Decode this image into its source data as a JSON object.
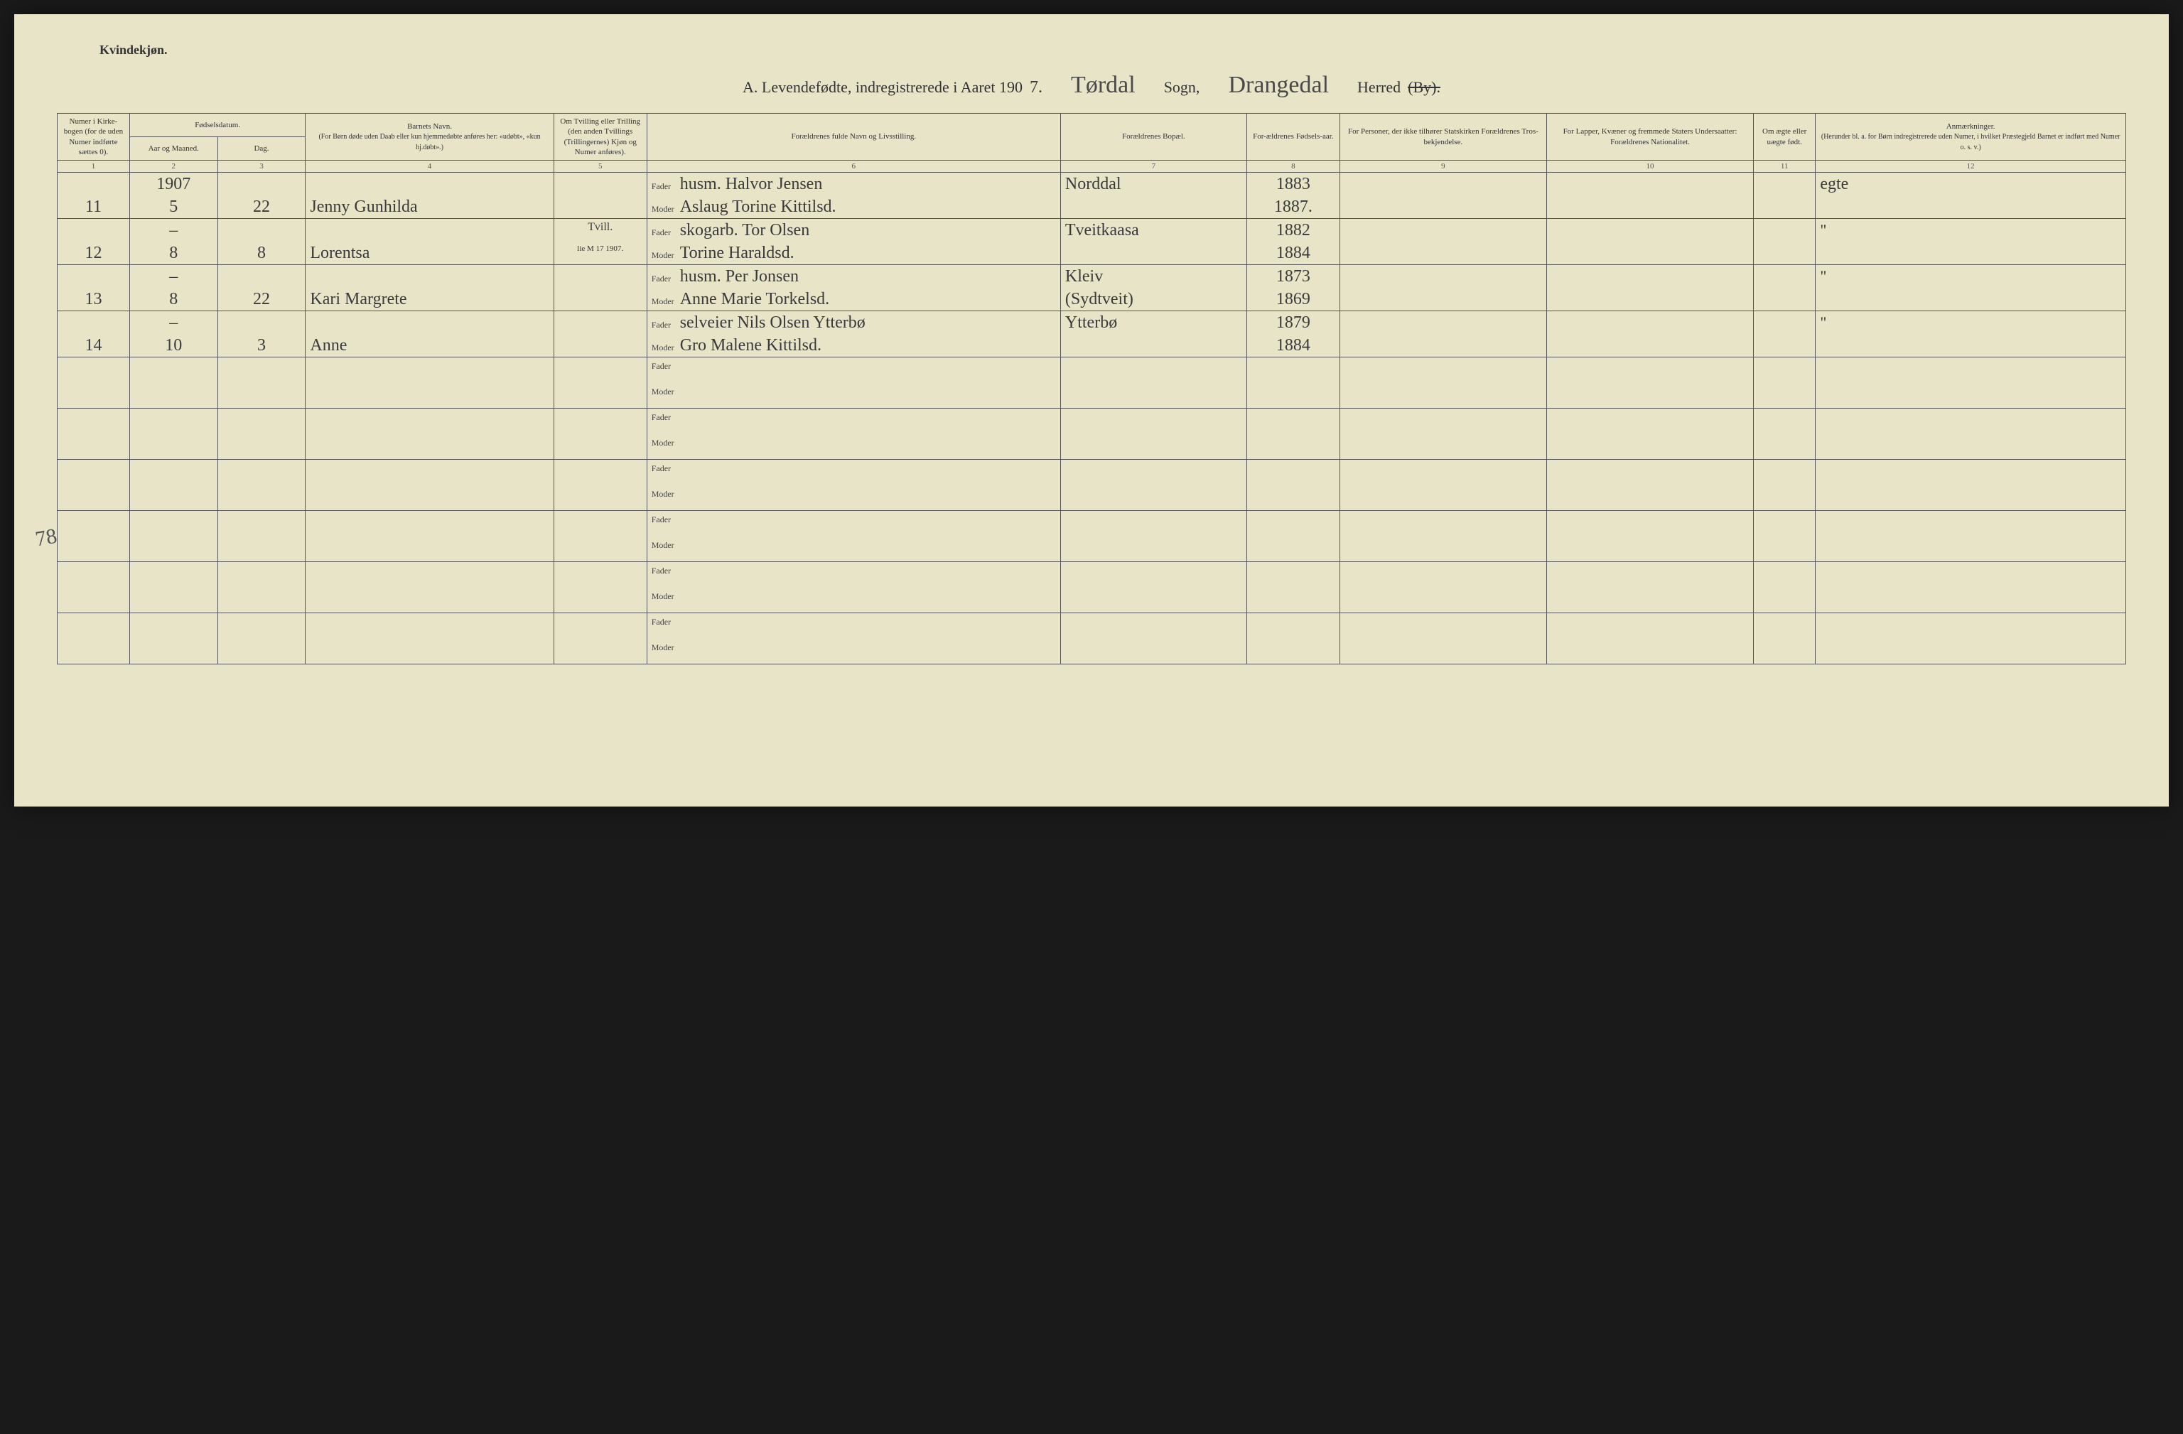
{
  "colors": {
    "page_bg": "#e8e4c8",
    "outer_bg": "#1a1a1a",
    "line": "#555555",
    "text": "#333333",
    "handwriting": "#3a3a3a"
  },
  "header": {
    "gender": "Kvindekjøn.",
    "title_prefix": "A.  Levendefødte, indregistrerede i Aaret 190",
    "year_suffix": "7.",
    "parish_hand": "Tørdal",
    "sogn_label": "Sogn,",
    "district_hand": "Drangedal",
    "herred_label": "Herred",
    "by_struck": "(By)."
  },
  "columns": {
    "c1": "Numer i Kirke-bogen (for de uden Numer indførte sættes 0).",
    "c2_group": "Fødselsdatum.",
    "c2a": "Aar og Maaned.",
    "c2b": "Dag.",
    "c3": "Barnets Navn.",
    "c3_sub": "(For Børn døde uden Daab eller kun hjemmedøbte anføres her: «udøbt», «kun hj.døbt».)",
    "c4": "Om Tvilling eller Trilling (den anden Tvillings (Trillingernes) Kjøn og Numer anføres).",
    "c5": "Forældrenes fulde Navn og Livsstilling.",
    "c6": "Forældrenes Bopæl.",
    "c7": "For-ældrenes Fødsels-aar.",
    "c8": "For Personer, der ikke tilhører Statskirken Forældrenes Tros-bekjendelse.",
    "c9": "For Lapper, Kvæner og fremmede Staters Undersaatter: Forældrenes Nationalitet.",
    "c10": "Om ægte eller uægte født.",
    "c11": "Anmærkninger.",
    "c11_sub": "(Herunder bl. a. for Børn indregistrerede uden Numer, i hvilket Præstegjeld Barnet er indført med Numer o. s. v.)"
  },
  "colnums": [
    "1",
    "2",
    "3",
    "4",
    "5",
    "6",
    "7",
    "8",
    "9",
    "10",
    "11",
    "12"
  ],
  "parent_labels": {
    "father": "Fader",
    "mother": "Moder"
  },
  "year_in_col": "1907",
  "entries": [
    {
      "num": "11",
      "month": "5",
      "day": "22",
      "child": "Jenny Gunhilda",
      "twin": "",
      "father": "husm. Halvor Jensen",
      "mother": "Aslaug Torine Kittilsd.",
      "residence": "Norddal",
      "father_year": "1883",
      "mother_year": "1887.",
      "legit": "egte"
    },
    {
      "num": "12",
      "month": "8",
      "day": "8",
      "child": "Lorentsa",
      "twin": "Tvill.",
      "twin_note": "lie M 17 1907.",
      "father": "skogarb. Tor Olsen",
      "mother": "Torine Haraldsd.",
      "residence": "Tveitkaasa",
      "father_year": "1882",
      "mother_year": "1884",
      "legit": "\""
    },
    {
      "num": "13",
      "month": "8",
      "day": "22",
      "child": "Kari Margrete",
      "twin": "",
      "father": "husm. Per Jonsen",
      "mother": "Anne Marie Torkelsd.",
      "residence": "Kleiv",
      "residence2": "(Sydtveit)",
      "father_year": "1873",
      "mother_year": "1869",
      "legit": "\""
    },
    {
      "num": "14",
      "month": "10",
      "day": "3",
      "child": "Anne",
      "twin": "",
      "father": "selveier Nils Olsen Ytterbø",
      "mother": "Gro Malene Kittilsd.",
      "residence": "Ytterbø",
      "father_year": "1879",
      "mother_year": "1884",
      "legit": "\""
    }
  ],
  "margin_note": "78",
  "empty_rows": 6
}
